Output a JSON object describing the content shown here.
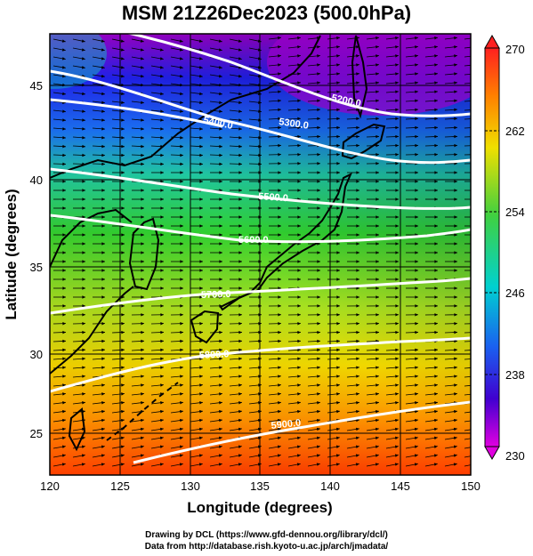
{
  "title": "MSM 21Z26Dec2023 (500.0hPa)",
  "x_axis": {
    "label": "Longitude (degrees)",
    "ticks": [
      "120",
      "125",
      "130",
      "135",
      "140",
      "145",
      "150"
    ]
  },
  "y_axis": {
    "label": "Latitude  (degrees)",
    "ticks": [
      "25",
      "30",
      "35",
      "40",
      "45"
    ]
  },
  "colorbar": {
    "min": 230,
    "max": 270,
    "tick_labels": [
      "270",
      "262",
      "254",
      "246",
      "238",
      "230"
    ]
  },
  "contour_labels": [
    "5200.0",
    "5300.0",
    "5400.0",
    "5500.0",
    "5600.0",
    "5700.0",
    "5800.0",
    "5900.0"
  ],
  "credits": {
    "line1": "Drawing by DCL (https://www.gfd-dennou.org/library/dcl/)",
    "line2": "Data from http://database.rish.kyoto-u.ac.jp/arch/jmadata/"
  },
  "colors": {
    "cold": "#9a00c8",
    "cool": "#1f3fe0",
    "mid_cyan": "#00d0d0",
    "mid_green": "#30d030",
    "warm_yellow": "#f0e000",
    "hot": "#ff3000"
  }
}
